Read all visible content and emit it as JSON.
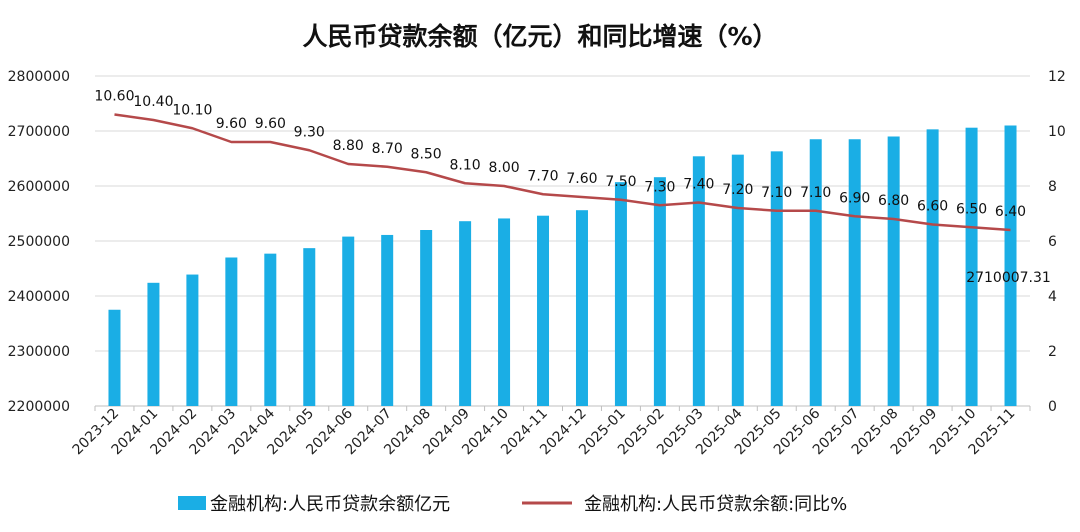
{
  "chart_data": {
    "type": "bar+line",
    "title": "人民币贷款余额（亿元）和同比增速（%）",
    "categories": [
      "2023-12",
      "2024-01",
      "2024-02",
      "2024-03",
      "2024-04",
      "2024-05",
      "2024-06",
      "2024-07",
      "2024-08",
      "2024-09",
      "2024-10",
      "2024-11",
      "2024-12",
      "2025-01",
      "2025-02",
      "2025-03",
      "2025-04",
      "2025-05",
      "2025-06",
      "2025-07",
      "2025-08",
      "2025-09",
      "2025-10",
      "2025-11"
    ],
    "series": [
      {
        "name": "金融机构:人民币贷款余额亿元",
        "type": "bar",
        "axis": "left",
        "color": "#1aaee5",
        "values": [
          2375000,
          2424000,
          2439000,
          2470000,
          2477000,
          2487000,
          2508000,
          2511000,
          2520000,
          2536000,
          2541000,
          2546000,
          2556000,
          2607000,
          2616000,
          2654000,
          2657000,
          2663000,
          2685000,
          2685000,
          2690000,
          2703000,
          2706000,
          2710007.31
        ]
      },
      {
        "name": "金融机构:人民币贷款余额:同比%",
        "type": "line",
        "axis": "right",
        "color": "#b5494a",
        "values": [
          10.6,
          10.4,
          10.1,
          9.6,
          9.6,
          9.3,
          8.8,
          8.7,
          8.5,
          8.1,
          8.0,
          7.7,
          7.6,
          7.5,
          7.3,
          7.4,
          7.2,
          7.1,
          7.1,
          6.9,
          6.8,
          6.6,
          6.5,
          6.4
        ],
        "labels": [
          "10.60",
          "10.40",
          "10.10",
          "9.60",
          "9.60",
          "9.30",
          "8.80",
          "8.70",
          "8.50",
          "8.10",
          "8.00",
          "7.70",
          "7.60",
          "7.50",
          "7.30",
          "7.40",
          "7.20",
          "7.10",
          "7.10",
          "6.90",
          "6.80",
          "6.60",
          "6.50",
          "6.40"
        ]
      }
    ],
    "y_left": {
      "min": 2200000,
      "max": 2800000,
      "ticks": [
        "2200000",
        "2300000",
        "2400000",
        "2500000",
        "2600000",
        "2700000",
        "2800000"
      ]
    },
    "y_right": {
      "min": 0,
      "max": 12,
      "ticks": [
        "0",
        "2",
        "4",
        "6",
        "8",
        "10",
        "12"
      ]
    },
    "bar_annotation": {
      "index": 23,
      "text": "2710007.31"
    },
    "grid": true,
    "legend_position": "bottom"
  }
}
